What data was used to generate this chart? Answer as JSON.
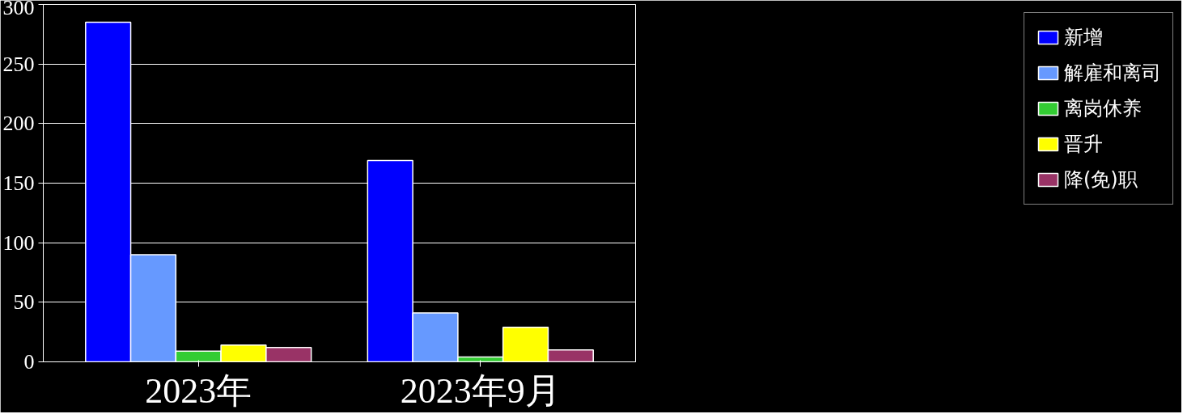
{
  "chart_data": {
    "type": "bar",
    "categories": [
      "2023年",
      "2023年9月"
    ],
    "series": [
      {
        "name": "新增",
        "color": "#0000ff",
        "values": [
          285,
          169
        ]
      },
      {
        "name": "解雇和离司",
        "color": "#6699ff",
        "values": [
          90,
          41
        ]
      },
      {
        "name": "离岗休养",
        "color": "#33cc33",
        "values": [
          9,
          4
        ]
      },
      {
        "name": "晋升",
        "color": "#ffff00",
        "values": [
          14,
          29
        ]
      },
      {
        "name": "降(免)职",
        "color": "#993366",
        "values": [
          12,
          10
        ]
      }
    ],
    "ylim": [
      0,
      300
    ],
    "yticks": [
      0,
      50,
      100,
      150,
      200,
      250,
      300
    ],
    "grid": "y",
    "legend": "right"
  }
}
